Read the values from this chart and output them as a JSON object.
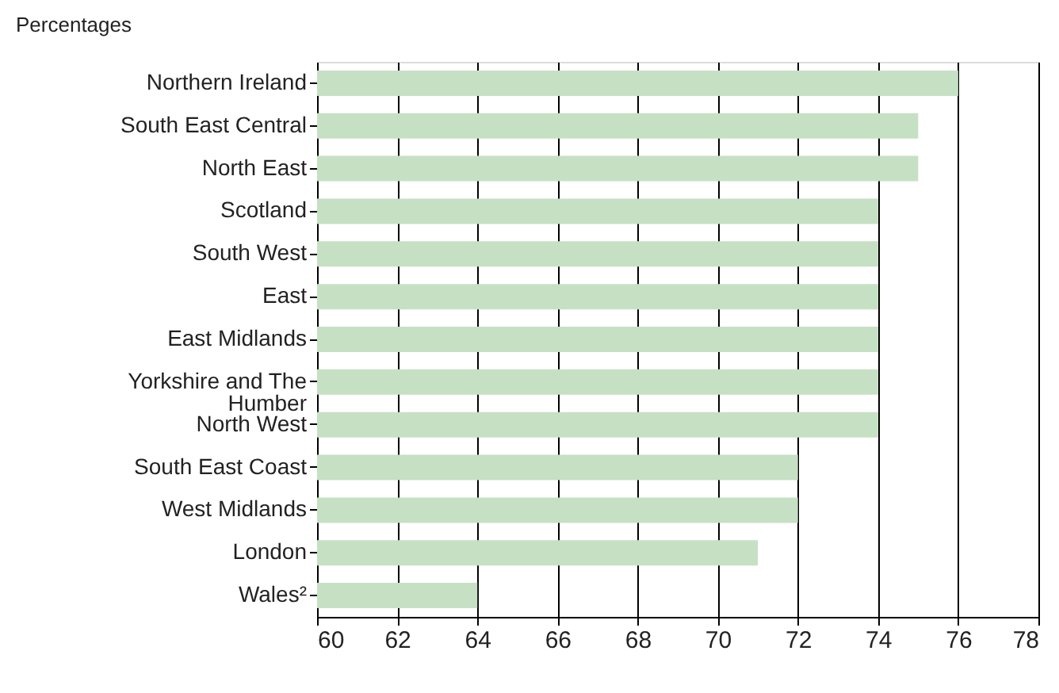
{
  "chart_data": {
    "type": "bar",
    "orientation": "horizontal",
    "subtitle": "Percentages",
    "categories": [
      "Northern Ireland",
      "South East Central",
      "North East",
      "Scotland",
      "South West",
      "East",
      "East Midlands",
      "Yorkshire and The Humber",
      "North West",
      "South East Coast",
      "West Midlands",
      "London",
      "Wales²"
    ],
    "values": [
      76,
      75,
      75,
      74,
      74,
      74,
      74,
      74,
      74,
      72,
      72,
      71,
      64
    ],
    "color": "#c6e0c4",
    "xlim": [
      60,
      78
    ],
    "xticks": [
      60,
      62,
      64,
      66,
      68,
      70,
      72,
      74,
      76,
      78
    ],
    "grid": "x"
  }
}
